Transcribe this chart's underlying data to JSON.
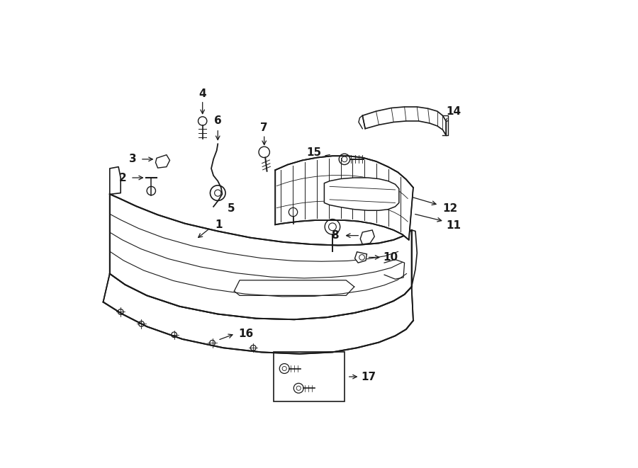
{
  "bg_color": "#ffffff",
  "line_color": "#1a1a1a",
  "fig_width": 9.0,
  "fig_height": 6.61,
  "dpi": 100,
  "xlim": [
    0,
    9
  ],
  "ylim": [
    0,
    6.61
  ]
}
